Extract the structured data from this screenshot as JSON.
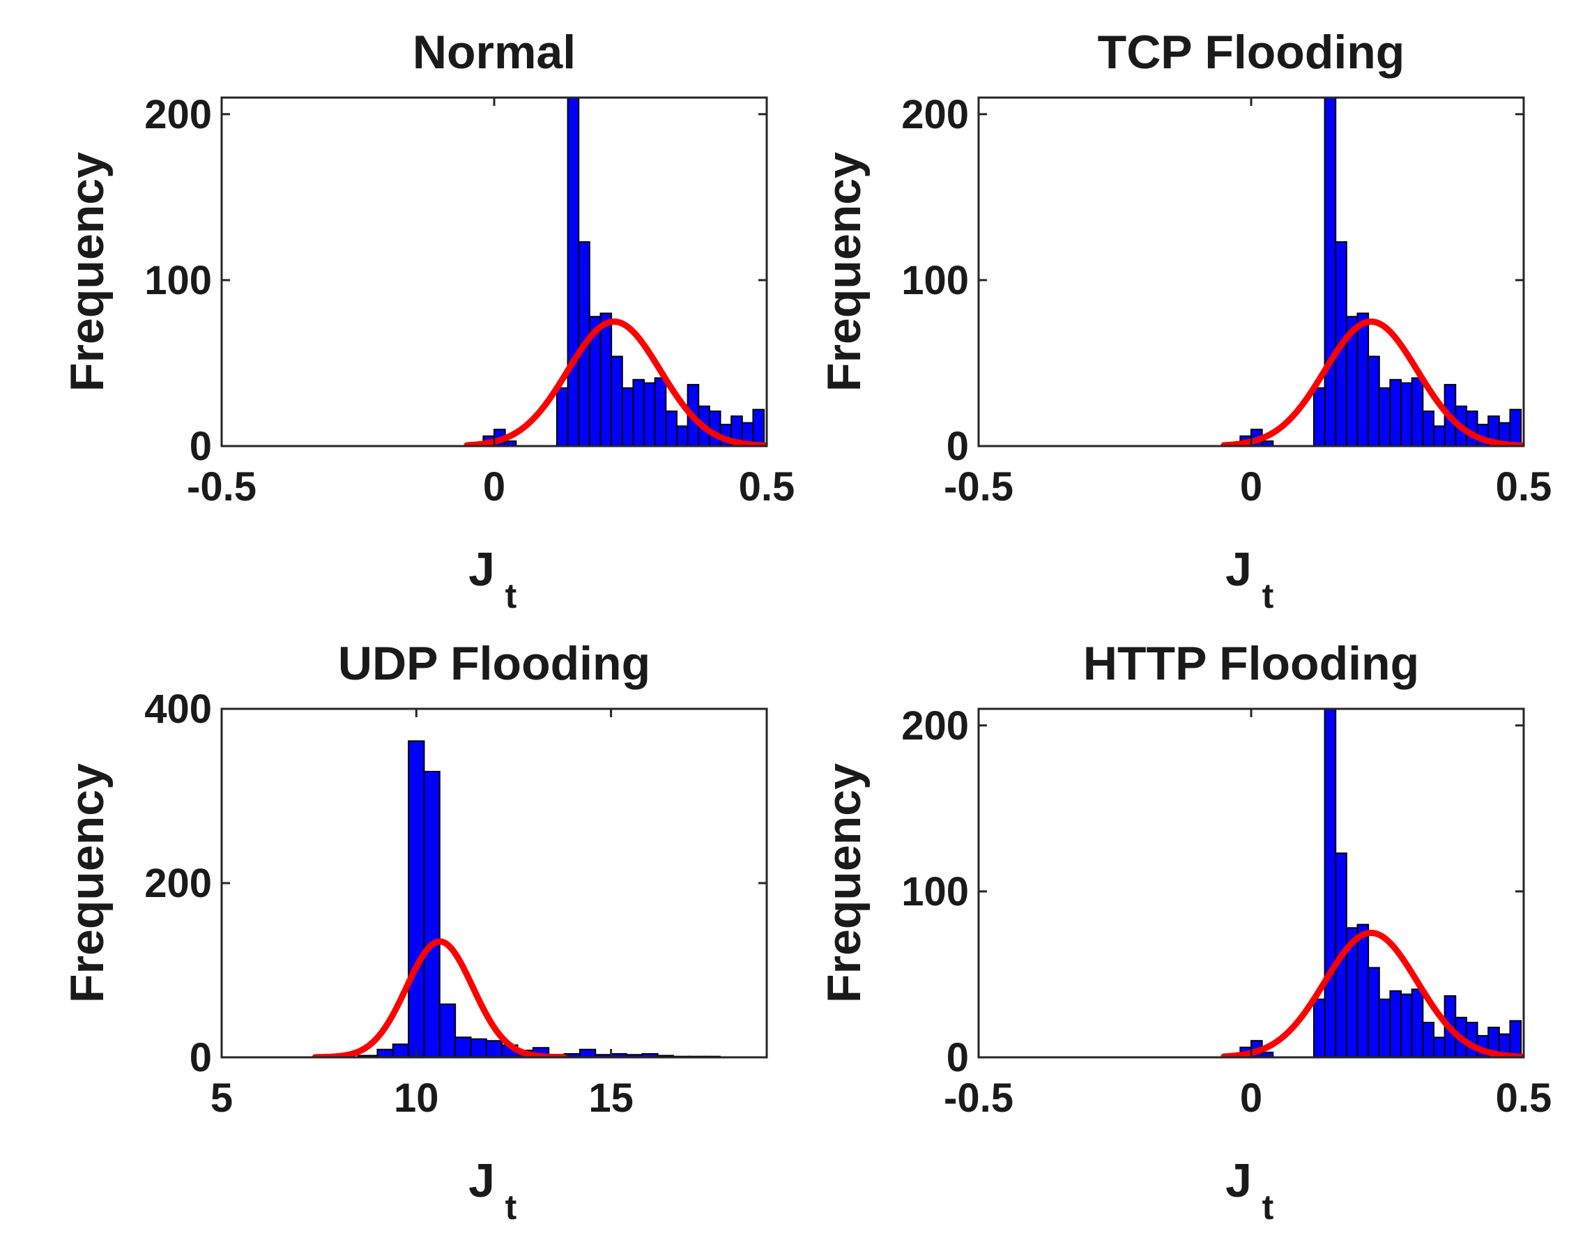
{
  "colors": {
    "bar": "#0000ff",
    "bar_edge": "#000000",
    "fit": "#ff0000",
    "axes": "#262626"
  },
  "chart_data": [
    {
      "type": "bar",
      "title": "Normal",
      "xlabel": "J",
      "xlabel_sub": "t",
      "ylabel": "Frequency",
      "xlim": [
        -0.5,
        0.5
      ],
      "ylim": [
        0,
        210
      ],
      "xticks": [
        -0.5,
        0,
        0.5
      ],
      "xtick_labels": [
        "-0.5",
        "0",
        "0.5"
      ],
      "yticks": [
        0,
        100,
        200
      ],
      "ytick_labels": [
        "0",
        "100",
        "200"
      ],
      "bins": [
        {
          "x0": -0.04,
          "x1": -0.02,
          "y": 2
        },
        {
          "x0": -0.02,
          "x1": 0.0,
          "y": 6
        },
        {
          "x0": 0.0,
          "x1": 0.02,
          "y": 10
        },
        {
          "x0": 0.02,
          "x1": 0.04,
          "y": 3
        },
        {
          "x0": 0.115,
          "x1": 0.135,
          "y": 35
        },
        {
          "x0": 0.135,
          "x1": 0.155,
          "y": 210
        },
        {
          "x0": 0.155,
          "x1": 0.175,
          "y": 123
        },
        {
          "x0": 0.175,
          "x1": 0.195,
          "y": 78
        },
        {
          "x0": 0.195,
          "x1": 0.215,
          "y": 80
        },
        {
          "x0": 0.215,
          "x1": 0.235,
          "y": 54
        },
        {
          "x0": 0.235,
          "x1": 0.255,
          "y": 35
        },
        {
          "x0": 0.255,
          "x1": 0.275,
          "y": 40
        },
        {
          "x0": 0.275,
          "x1": 0.295,
          "y": 38
        },
        {
          "x0": 0.295,
          "x1": 0.315,
          "y": 41
        },
        {
          "x0": 0.315,
          "x1": 0.335,
          "y": 21
        },
        {
          "x0": 0.335,
          "x1": 0.355,
          "y": 12
        },
        {
          "x0": 0.355,
          "x1": 0.375,
          "y": 37
        },
        {
          "x0": 0.375,
          "x1": 0.395,
          "y": 24
        },
        {
          "x0": 0.395,
          "x1": 0.415,
          "y": 21
        },
        {
          "x0": 0.415,
          "x1": 0.435,
          "y": 13
        },
        {
          "x0": 0.435,
          "x1": 0.455,
          "y": 18
        },
        {
          "x0": 0.455,
          "x1": 0.475,
          "y": 14
        },
        {
          "x0": 0.475,
          "x1": 0.495,
          "y": 22
        }
      ],
      "fit": {
        "mu": 0.22,
        "sigma": 0.085,
        "peak": 75,
        "x_start": -0.05,
        "x_end": 0.5
      }
    },
    {
      "type": "bar",
      "title": "TCP Flooding",
      "xlabel": "J",
      "xlabel_sub": "t",
      "ylabel": "Frequency",
      "xlim": [
        -0.5,
        0.5
      ],
      "ylim": [
        0,
        210
      ],
      "xticks": [
        -0.5,
        0,
        0.5
      ],
      "xtick_labels": [
        "-0.5",
        "0",
        "0.5"
      ],
      "yticks": [
        0,
        100,
        200
      ],
      "ytick_labels": [
        "0",
        "100",
        "200"
      ],
      "bins": [
        {
          "x0": -0.04,
          "x1": -0.02,
          "y": 2
        },
        {
          "x0": -0.02,
          "x1": 0.0,
          "y": 6
        },
        {
          "x0": 0.0,
          "x1": 0.02,
          "y": 10
        },
        {
          "x0": 0.02,
          "x1": 0.04,
          "y": 3
        },
        {
          "x0": 0.115,
          "x1": 0.135,
          "y": 35
        },
        {
          "x0": 0.135,
          "x1": 0.155,
          "y": 210
        },
        {
          "x0": 0.155,
          "x1": 0.175,
          "y": 123
        },
        {
          "x0": 0.175,
          "x1": 0.195,
          "y": 78
        },
        {
          "x0": 0.195,
          "x1": 0.215,
          "y": 80
        },
        {
          "x0": 0.215,
          "x1": 0.235,
          "y": 54
        },
        {
          "x0": 0.235,
          "x1": 0.255,
          "y": 35
        },
        {
          "x0": 0.255,
          "x1": 0.275,
          "y": 40
        },
        {
          "x0": 0.275,
          "x1": 0.295,
          "y": 38
        },
        {
          "x0": 0.295,
          "x1": 0.315,
          "y": 41
        },
        {
          "x0": 0.315,
          "x1": 0.335,
          "y": 21
        },
        {
          "x0": 0.335,
          "x1": 0.355,
          "y": 12
        },
        {
          "x0": 0.355,
          "x1": 0.375,
          "y": 37
        },
        {
          "x0": 0.375,
          "x1": 0.395,
          "y": 24
        },
        {
          "x0": 0.395,
          "x1": 0.415,
          "y": 21
        },
        {
          "x0": 0.415,
          "x1": 0.435,
          "y": 13
        },
        {
          "x0": 0.435,
          "x1": 0.455,
          "y": 18
        },
        {
          "x0": 0.455,
          "x1": 0.475,
          "y": 14
        },
        {
          "x0": 0.475,
          "x1": 0.495,
          "y": 22
        }
      ],
      "fit": {
        "mu": 0.22,
        "sigma": 0.085,
        "peak": 75,
        "x_start": -0.05,
        "x_end": 0.5
      }
    },
    {
      "type": "bar",
      "title": "UDP Flooding",
      "xlabel": "J",
      "xlabel_sub": "t",
      "ylabel": "Frequency",
      "xlim": [
        5,
        19
      ],
      "ylim": [
        0,
        400
      ],
      "xticks": [
        5,
        10,
        15
      ],
      "xtick_labels": [
        "5",
        "10",
        "15"
      ],
      "yticks": [
        0,
        200,
        400
      ],
      "ytick_labels": [
        "0",
        "200",
        "400"
      ],
      "bins": [
        {
          "x0": 8.5,
          "x1": 9.0,
          "y": 2
        },
        {
          "x0": 9.0,
          "x1": 9.4,
          "y": 9
        },
        {
          "x0": 9.4,
          "x1": 9.8,
          "y": 15
        },
        {
          "x0": 9.8,
          "x1": 10.2,
          "y": 363
        },
        {
          "x0": 10.2,
          "x1": 10.6,
          "y": 328
        },
        {
          "x0": 10.6,
          "x1": 11.0,
          "y": 61
        },
        {
          "x0": 11.0,
          "x1": 11.4,
          "y": 23
        },
        {
          "x0": 11.4,
          "x1": 11.8,
          "y": 21
        },
        {
          "x0": 11.8,
          "x1": 12.2,
          "y": 19
        },
        {
          "x0": 12.2,
          "x1": 12.6,
          "y": 14
        },
        {
          "x0": 12.6,
          "x1": 13.0,
          "y": 8
        },
        {
          "x0": 13.0,
          "x1": 13.4,
          "y": 11
        },
        {
          "x0": 13.4,
          "x1": 13.8,
          "y": 3
        },
        {
          "x0": 13.8,
          "x1": 14.2,
          "y": 4
        },
        {
          "x0": 14.2,
          "x1": 14.6,
          "y": 9
        },
        {
          "x0": 14.6,
          "x1": 15.0,
          "y": 3
        },
        {
          "x0": 15.0,
          "x1": 15.4,
          "y": 4
        },
        {
          "x0": 15.4,
          "x1": 15.8,
          "y": 3
        },
        {
          "x0": 15.8,
          "x1": 16.2,
          "y": 4
        },
        {
          "x0": 16.2,
          "x1": 16.6,
          "y": 2
        },
        {
          "x0": 16.6,
          "x1": 17.0,
          "y": 1
        },
        {
          "x0": 17.0,
          "x1": 17.4,
          "y": 1
        },
        {
          "x0": 17.4,
          "x1": 17.8,
          "y": 1
        }
      ],
      "fit": {
        "mu": 10.6,
        "sigma": 0.85,
        "peak": 133,
        "x_start": 7.4,
        "x_end": 13.8
      }
    },
    {
      "type": "bar",
      "title": "HTTP Flooding",
      "xlabel": "J",
      "xlabel_sub": "t",
      "ylabel": "Frequency",
      "xlim": [
        -0.5,
        0.5
      ],
      "ylim": [
        0,
        210
      ],
      "xticks": [
        -0.5,
        0,
        0.5
      ],
      "xtick_labels": [
        "-0.5",
        "0",
        "0.5"
      ],
      "yticks": [
        0,
        100,
        200
      ],
      "ytick_labels": [
        "0",
        "100",
        "200"
      ],
      "bins": [
        {
          "x0": -0.04,
          "x1": -0.02,
          "y": 2
        },
        {
          "x0": -0.02,
          "x1": 0.0,
          "y": 6
        },
        {
          "x0": 0.0,
          "x1": 0.02,
          "y": 10
        },
        {
          "x0": 0.02,
          "x1": 0.04,
          "y": 3
        },
        {
          "x0": 0.115,
          "x1": 0.135,
          "y": 35
        },
        {
          "x0": 0.135,
          "x1": 0.155,
          "y": 210
        },
        {
          "x0": 0.155,
          "x1": 0.175,
          "y": 123
        },
        {
          "x0": 0.175,
          "x1": 0.195,
          "y": 78
        },
        {
          "x0": 0.195,
          "x1": 0.215,
          "y": 80
        },
        {
          "x0": 0.215,
          "x1": 0.235,
          "y": 54
        },
        {
          "x0": 0.235,
          "x1": 0.255,
          "y": 35
        },
        {
          "x0": 0.255,
          "x1": 0.275,
          "y": 40
        },
        {
          "x0": 0.275,
          "x1": 0.295,
          "y": 38
        },
        {
          "x0": 0.295,
          "x1": 0.315,
          "y": 41
        },
        {
          "x0": 0.315,
          "x1": 0.335,
          "y": 21
        },
        {
          "x0": 0.335,
          "x1": 0.355,
          "y": 12
        },
        {
          "x0": 0.355,
          "x1": 0.375,
          "y": 37
        },
        {
          "x0": 0.375,
          "x1": 0.395,
          "y": 24
        },
        {
          "x0": 0.395,
          "x1": 0.415,
          "y": 21
        },
        {
          "x0": 0.415,
          "x1": 0.435,
          "y": 13
        },
        {
          "x0": 0.435,
          "x1": 0.455,
          "y": 18
        },
        {
          "x0": 0.455,
          "x1": 0.475,
          "y": 14
        },
        {
          "x0": 0.475,
          "x1": 0.495,
          "y": 22
        }
      ],
      "fit": {
        "mu": 0.22,
        "sigma": 0.085,
        "peak": 75,
        "x_start": -0.05,
        "x_end": 0.5
      }
    }
  ]
}
